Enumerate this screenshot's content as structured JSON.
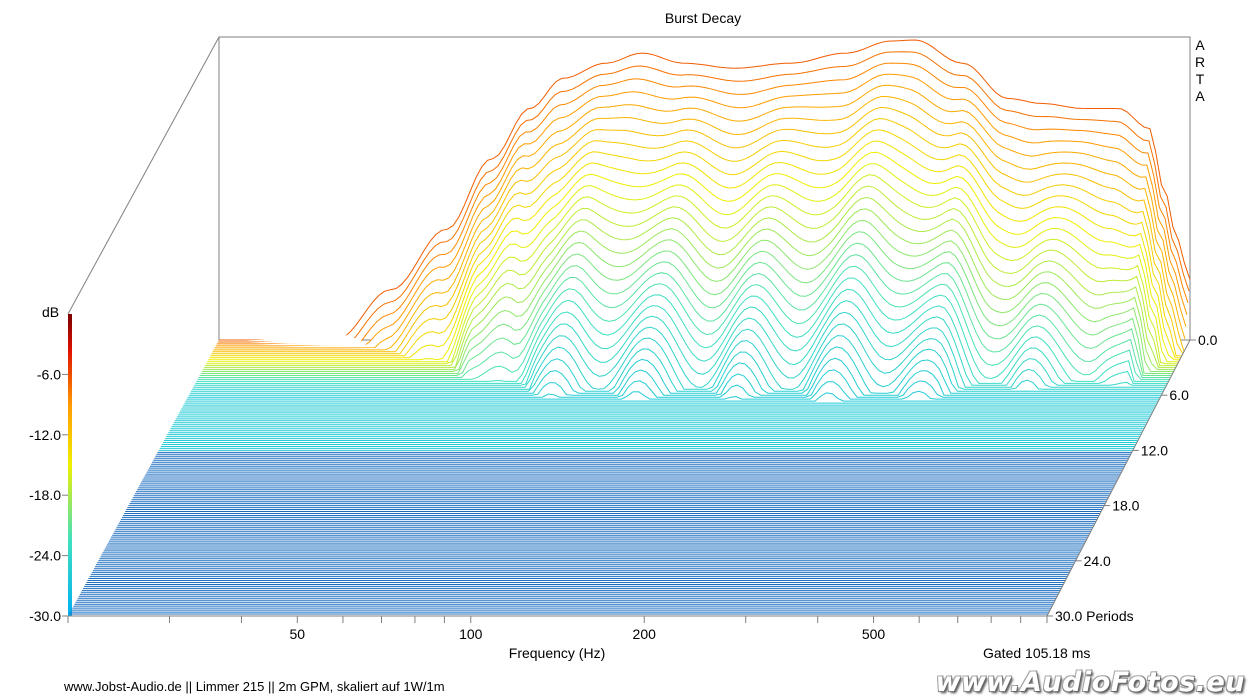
{
  "chart_data": {
    "type": "waterfall",
    "title": "Burst Decay",
    "corner_label": [
      "A",
      "R",
      "T",
      "A"
    ],
    "z_axis": {
      "unit": "dB",
      "ticks": [
        "-6.0",
        "-12.0",
        "-18.0",
        "-24.0",
        "-30.0"
      ],
      "range": [
        -30,
        0
      ]
    },
    "x_axis": {
      "label": "Frequency (Hz)",
      "ticks": [
        "50",
        "100",
        "200",
        "500"
      ],
      "scale": "log",
      "range": [
        20,
        1000
      ]
    },
    "y_axis": {
      "unit": "Periods",
      "ticks": [
        "0.0",
        "6.0",
        "12.0",
        "18.0",
        "24.0",
        "30.0 Periods"
      ],
      "range": [
        0,
        30
      ]
    },
    "gated_label": "Gated 105.18 ms",
    "front_response_db": {
      "hz": [
        32,
        40,
        50,
        60,
        70,
        80,
        95,
        110,
        130,
        160,
        200,
        250,
        300,
        330,
        400,
        480,
        550,
        650,
        750,
        850,
        900,
        950,
        1000
      ],
      "db": [
        -30,
        -25,
        -19,
        -12,
        -7,
        -4,
        -2.5,
        -1.5,
        -2.5,
        -3,
        -2.5,
        -1.5,
        -0.3,
        -0.2,
        -2.5,
        -6,
        -6.5,
        -7,
        -7,
        -9,
        -15,
        -20,
        -24
      ]
    },
    "colorscale": [
      "#00c8ff",
      "#40e0d0",
      "#ffff00",
      "#ffa500",
      "#ff2000",
      "#8b0000"
    ]
  },
  "footer": {
    "credit": "www.Jobst-Audio.de  ||  Limmer 215  ||  2m GPM, skaliert auf 1W/1m",
    "watermark": "www.AudioFotos.eu"
  }
}
